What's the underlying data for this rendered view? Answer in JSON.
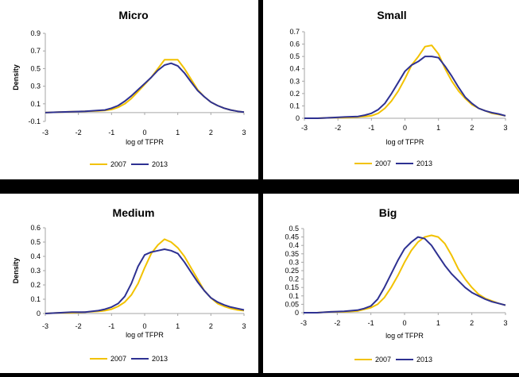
{
  "colors": {
    "s2007": "#F2C200",
    "s2013": "#2E3192",
    "axis": "#A6A6A6"
  },
  "chart_data": [
    {
      "type": "line",
      "title": "Micro",
      "xlabel": "log of TFPR",
      "ylabel": "Density",
      "xlim": [
        -3,
        3
      ],
      "ylim": [
        -0.1,
        0.9
      ],
      "x_ticks": [
        "-3",
        "-2",
        "-1",
        "0",
        "1",
        "2",
        "3"
      ],
      "y_ticks": [
        "-0.1",
        "0.1",
        "0.3",
        "0.5",
        "0.7",
        "0.9"
      ],
      "x": [
        -3,
        -2.6,
        -2.2,
        -1.8,
        -1.4,
        -1.2,
        -1,
        -0.8,
        -0.6,
        -0.4,
        -0.2,
        0,
        0.2,
        0.4,
        0.6,
        0.8,
        1.0,
        1.2,
        1.4,
        1.6,
        1.8,
        2.0,
        2.2,
        2.4,
        2.6,
        2.8,
        3.0
      ],
      "series": [
        {
          "name": "2007",
          "values": [
            0.0,
            0.005,
            0.01,
            0.015,
            0.02,
            0.025,
            0.035,
            0.06,
            0.1,
            0.16,
            0.24,
            0.32,
            0.4,
            0.5,
            0.6,
            0.6,
            0.6,
            0.5,
            0.38,
            0.26,
            0.18,
            0.12,
            0.08,
            0.05,
            0.03,
            0.015,
            0.005
          ]
        },
        {
          "name": "2013",
          "values": [
            0.0,
            0.005,
            0.01,
            0.015,
            0.025,
            0.03,
            0.05,
            0.08,
            0.13,
            0.19,
            0.26,
            0.33,
            0.4,
            0.48,
            0.54,
            0.56,
            0.53,
            0.45,
            0.35,
            0.25,
            0.18,
            0.12,
            0.08,
            0.05,
            0.03,
            0.015,
            0.005
          ]
        }
      ]
    },
    {
      "type": "line",
      "title": "Small",
      "xlabel": "log of TFPR",
      "ylabel": "",
      "xlim": [
        -3,
        3
      ],
      "ylim": [
        0,
        0.7
      ],
      "x_ticks": [
        "-3",
        "-2",
        "-1",
        "0",
        "1",
        "2",
        "3"
      ],
      "y_ticks": [
        "0",
        "0.1",
        "0.2",
        "0.3",
        "0.4",
        "0.5",
        "0.6",
        "0.7"
      ],
      "x": [
        -3,
        -2.6,
        -2.2,
        -1.8,
        -1.4,
        -1.2,
        -1,
        -0.8,
        -0.6,
        -0.4,
        -0.2,
        0,
        0.2,
        0.4,
        0.6,
        0.8,
        1.0,
        1.2,
        1.4,
        1.6,
        1.8,
        2.0,
        2.2,
        2.4,
        2.6,
        2.8,
        3.0
      ],
      "series": [
        {
          "name": "2007",
          "values": [
            0.0,
            0.0,
            0.005,
            0.005,
            0.01,
            0.015,
            0.02,
            0.04,
            0.08,
            0.14,
            0.22,
            0.32,
            0.43,
            0.5,
            0.58,
            0.59,
            0.52,
            0.4,
            0.3,
            0.22,
            0.16,
            0.11,
            0.08,
            0.06,
            0.04,
            0.03,
            0.02
          ]
        },
        {
          "name": "2013",
          "values": [
            0.0,
            0.0,
            0.005,
            0.01,
            0.015,
            0.025,
            0.04,
            0.07,
            0.12,
            0.2,
            0.29,
            0.38,
            0.43,
            0.46,
            0.5,
            0.5,
            0.49,
            0.42,
            0.34,
            0.25,
            0.17,
            0.12,
            0.08,
            0.06,
            0.045,
            0.035,
            0.02
          ]
        }
      ]
    },
    {
      "type": "line",
      "title": "Medium",
      "xlabel": "log of TFPR",
      "ylabel": "Density",
      "xlim": [
        -3,
        3
      ],
      "ylim": [
        0,
        0.6
      ],
      "x_ticks": [
        "-3",
        "-2",
        "-1",
        "0",
        "1",
        "2",
        "3"
      ],
      "y_ticks": [
        "0",
        "0.1",
        "0.2",
        "0.3",
        "0.4",
        "0.5",
        "0.6"
      ],
      "x": [
        -3,
        -2.6,
        -2.2,
        -1.8,
        -1.4,
        -1.2,
        -1,
        -0.8,
        -0.6,
        -0.4,
        -0.2,
        0,
        0.2,
        0.4,
        0.6,
        0.8,
        1.0,
        1.2,
        1.4,
        1.6,
        1.8,
        2.0,
        2.2,
        2.4,
        2.6,
        2.8,
        3.0
      ],
      "series": [
        {
          "name": "2007",
          "values": [
            0.0,
            0.005,
            0.005,
            0.01,
            0.015,
            0.02,
            0.03,
            0.05,
            0.08,
            0.13,
            0.21,
            0.32,
            0.42,
            0.48,
            0.52,
            0.5,
            0.46,
            0.4,
            0.32,
            0.24,
            0.16,
            0.11,
            0.07,
            0.05,
            0.035,
            0.025,
            0.02
          ]
        },
        {
          "name": "2013",
          "values": [
            0.0,
            0.005,
            0.01,
            0.01,
            0.02,
            0.03,
            0.045,
            0.07,
            0.12,
            0.21,
            0.33,
            0.41,
            0.43,
            0.44,
            0.45,
            0.44,
            0.42,
            0.36,
            0.29,
            0.22,
            0.16,
            0.11,
            0.08,
            0.06,
            0.045,
            0.035,
            0.025
          ]
        }
      ]
    },
    {
      "type": "line",
      "title": "Big",
      "xlabel": "log of TFPR",
      "ylabel": "",
      "xlim": [
        -3,
        3
      ],
      "ylim": [
        0,
        0.5
      ],
      "x_ticks": [
        "-3",
        "-2",
        "-1",
        "0",
        "1",
        "2",
        "3"
      ],
      "y_ticks": [
        "0",
        "0.05",
        "0.1",
        "0.15",
        "0.2",
        "0.25",
        "0.3",
        "0.35",
        "0.4",
        "0.45",
        "0.5"
      ],
      "x": [
        -3,
        -2.6,
        -2.2,
        -1.8,
        -1.4,
        -1.2,
        -1,
        -0.8,
        -0.6,
        -0.4,
        -0.2,
        0,
        0.2,
        0.4,
        0.6,
        0.8,
        1.0,
        1.2,
        1.4,
        1.6,
        1.8,
        2.0,
        2.2,
        2.4,
        2.6,
        2.8,
        3.0
      ],
      "series": [
        {
          "name": "2007",
          "values": [
            0.0,
            0.0,
            0.005,
            0.005,
            0.01,
            0.02,
            0.03,
            0.05,
            0.09,
            0.15,
            0.22,
            0.3,
            0.37,
            0.42,
            0.45,
            0.46,
            0.45,
            0.41,
            0.34,
            0.26,
            0.2,
            0.15,
            0.11,
            0.085,
            0.07,
            0.055,
            0.045
          ]
        },
        {
          "name": "2013",
          "values": [
            0.0,
            0.0,
            0.005,
            0.008,
            0.015,
            0.025,
            0.04,
            0.08,
            0.15,
            0.23,
            0.31,
            0.38,
            0.42,
            0.45,
            0.44,
            0.4,
            0.34,
            0.28,
            0.23,
            0.19,
            0.15,
            0.12,
            0.1,
            0.08,
            0.065,
            0.055,
            0.045
          ]
        }
      ]
    }
  ]
}
